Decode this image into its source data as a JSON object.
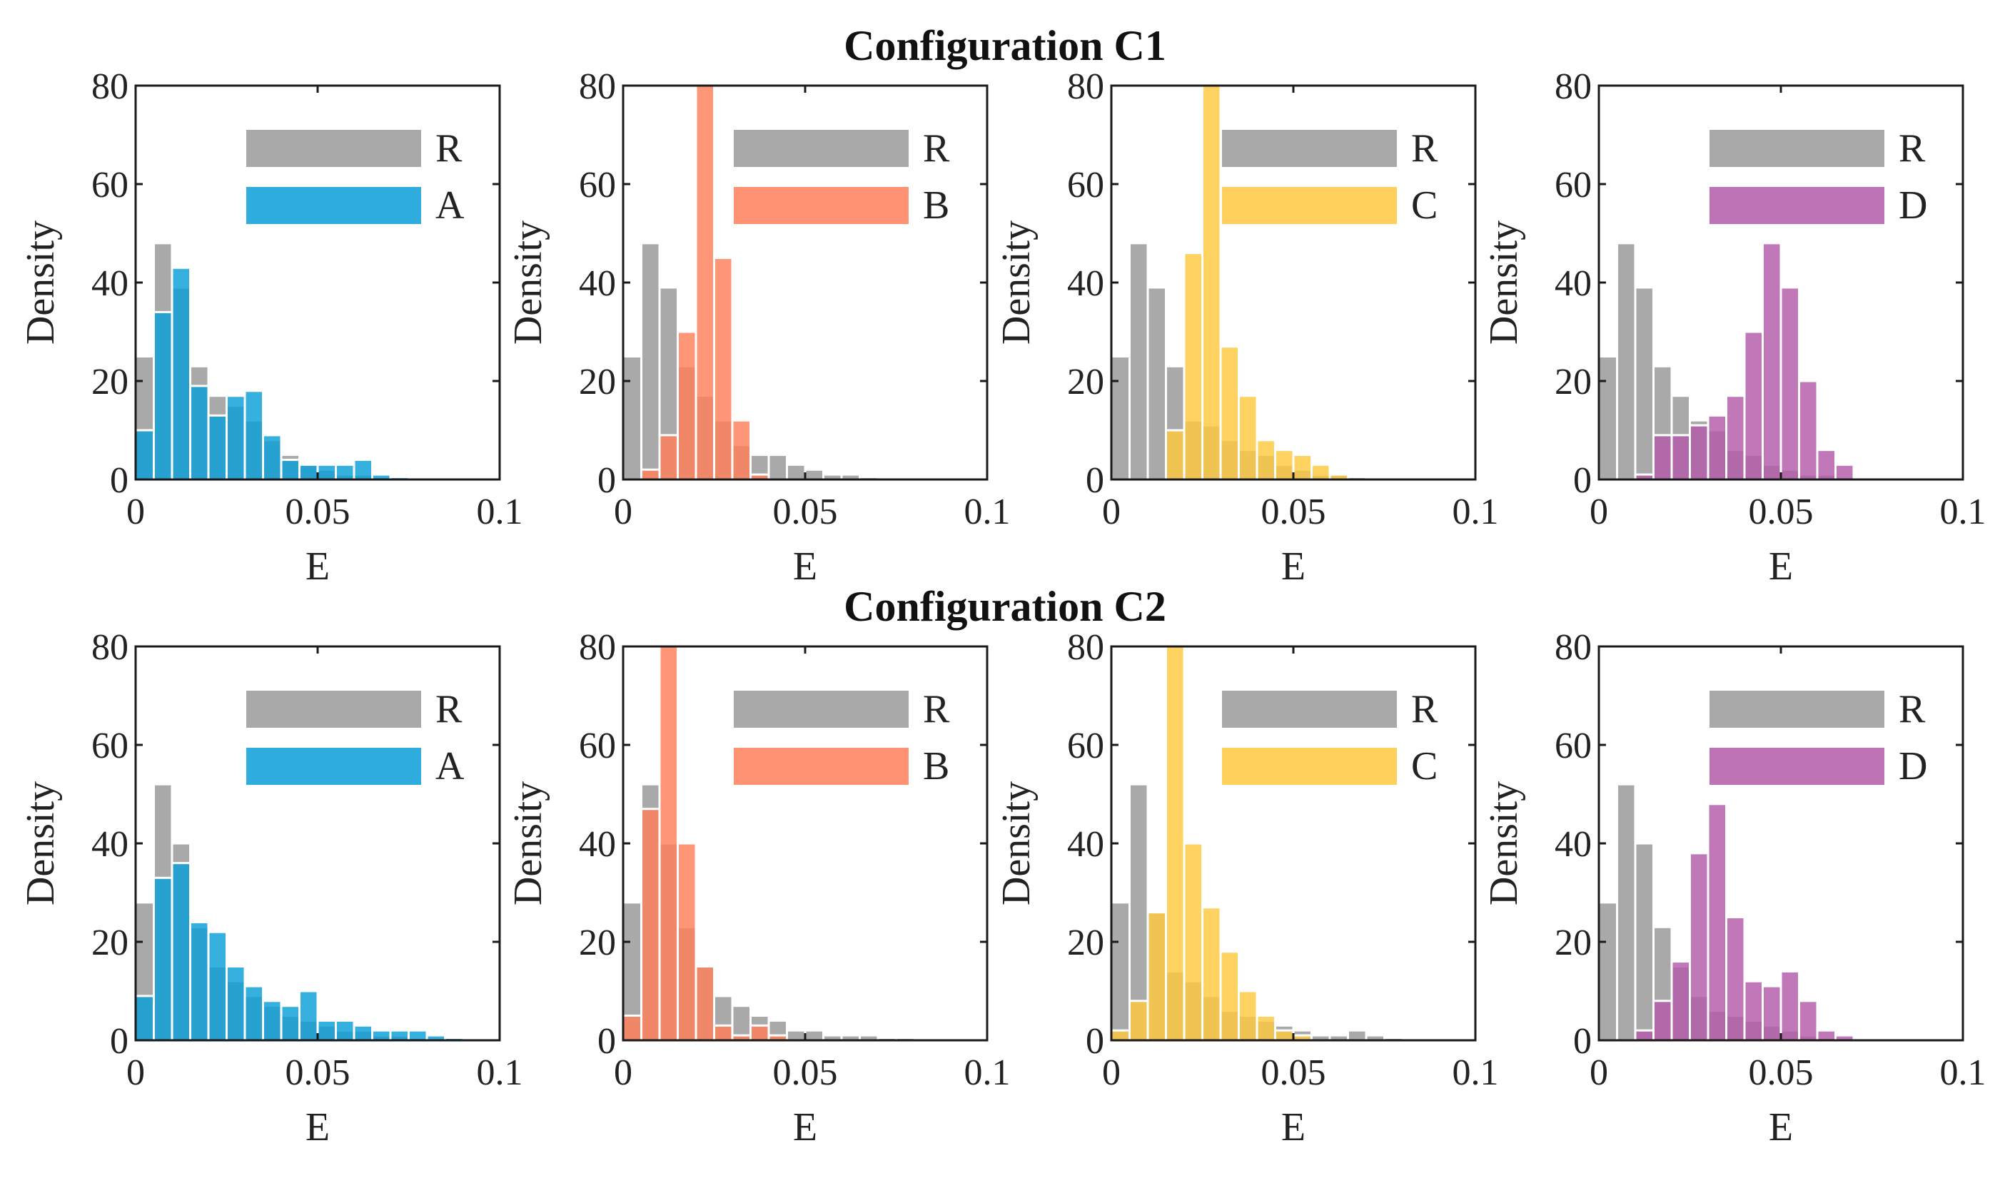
{
  "figure": {
    "row_titles": [
      "Configuration C1",
      "Configuration C2"
    ]
  },
  "colors": {
    "R": "#8c8c8c",
    "A": "#0a9fd8",
    "B": "#ff7f5a",
    "C": "#ffc940",
    "D": "#b35aaa"
  },
  "chart_data": [
    {
      "id": "c1-A",
      "type": "bar",
      "configuration": "C1",
      "xlabel": "E",
      "ylabel": "Density",
      "xlim": [
        0,
        0.1
      ],
      "ylim": [
        0,
        80
      ],
      "xticks": [
        0,
        0.05,
        0.1
      ],
      "xtick_labels": [
        "0",
        "0.05",
        "0.1"
      ],
      "yticks": [
        0,
        20,
        40,
        60,
        80
      ],
      "ytick_labels": [
        "0",
        "20",
        "40",
        "60",
        "80"
      ],
      "bin_width": 0.005,
      "series": [
        {
          "name": "R",
          "color_key": "R",
          "values": [
            25,
            48,
            39,
            23,
            17,
            15,
            12,
            8,
            5,
            3,
            2,
            1,
            1,
            0.5,
            0.3,
            0.2,
            0.1,
            0,
            0,
            0
          ]
        },
        {
          "name": "A",
          "color_key": "A",
          "values": [
            10,
            34,
            43,
            19,
            13,
            17,
            18,
            9,
            4,
            3,
            3,
            3,
            4,
            1,
            0.5,
            0,
            0,
            0,
            0,
            0
          ]
        }
      ],
      "legend": [
        "R",
        "A"
      ],
      "legend_position": "top-right"
    },
    {
      "id": "c1-B",
      "type": "bar",
      "configuration": "C1",
      "xlabel": "E",
      "ylabel": "Density",
      "xlim": [
        0,
        0.1
      ],
      "ylim": [
        0,
        80
      ],
      "xticks": [
        0,
        0.05,
        0.1
      ],
      "xtick_labels": [
        "0",
        "0.05",
        "0.1"
      ],
      "yticks": [
        0,
        20,
        40,
        60,
        80
      ],
      "ytick_labels": [
        "0",
        "20",
        "40",
        "60",
        "80"
      ],
      "bin_width": 0.005,
      "series": [
        {
          "name": "R",
          "color_key": "R",
          "values": [
            25,
            48,
            39,
            23,
            17,
            12,
            7,
            5,
            5,
            3,
            2,
            1,
            1,
            0.5,
            0.3,
            0.2,
            0.1,
            0,
            0,
            0
          ]
        },
        {
          "name": "B",
          "color_key": "B",
          "values": [
            0,
            2,
            9,
            30,
            80,
            45,
            12,
            1,
            0,
            0,
            0,
            0,
            0,
            0,
            0,
            0,
            0,
            0,
            0,
            0
          ]
        }
      ],
      "legend": [
        "R",
        "B"
      ],
      "legend_position": "top-right"
    },
    {
      "id": "c1-C",
      "type": "bar",
      "configuration": "C1",
      "xlabel": "E",
      "ylabel": "Density",
      "xlim": [
        0,
        0.1
      ],
      "ylim": [
        0,
        80
      ],
      "xticks": [
        0,
        0.05,
        0.1
      ],
      "xtick_labels": [
        "0",
        "0.05",
        "0.1"
      ],
      "yticks": [
        0,
        20,
        40,
        60,
        80
      ],
      "ytick_labels": [
        "0",
        "20",
        "40",
        "60",
        "80"
      ],
      "bin_width": 0.005,
      "series": [
        {
          "name": "R",
          "color_key": "R",
          "values": [
            25,
            48,
            39,
            23,
            12,
            11,
            8,
            6,
            5,
            3,
            2,
            1,
            1,
            0.5,
            0.3,
            0.2,
            0.1,
            0,
            0,
            0
          ]
        },
        {
          "name": "C",
          "color_key": "C",
          "values": [
            0,
            0,
            0,
            10,
            46,
            80,
            27,
            17,
            8,
            6,
            5,
            3,
            1,
            0,
            0,
            0,
            0,
            0,
            0,
            0
          ]
        }
      ],
      "legend": [
        "R",
        "C"
      ],
      "legend_position": "top-right"
    },
    {
      "id": "c1-D",
      "type": "bar",
      "configuration": "C1",
      "xlabel": "E",
      "ylabel": "Density",
      "xlim": [
        0,
        0.1
      ],
      "ylim": [
        0,
        80
      ],
      "xticks": [
        0,
        0.05,
        0.1
      ],
      "xtick_labels": [
        "0",
        "0.05",
        "0.1"
      ],
      "yticks": [
        0,
        20,
        40,
        60,
        80
      ],
      "ytick_labels": [
        "0",
        "20",
        "40",
        "60",
        "80"
      ],
      "bin_width": 0.005,
      "series": [
        {
          "name": "R",
          "color_key": "R",
          "values": [
            25,
            48,
            39,
            23,
            17,
            12,
            10,
            6,
            5,
            3,
            2,
            1,
            1,
            0.5,
            0.3,
            0.2,
            0.1,
            0,
            0,
            0
          ]
        },
        {
          "name": "D",
          "color_key": "D",
          "values": [
            0,
            0,
            1,
            9,
            9,
            11,
            13,
            17,
            30,
            48,
            39,
            20,
            6,
            3,
            0,
            0,
            0,
            0,
            0,
            0
          ]
        }
      ],
      "legend": [
        "R",
        "D"
      ],
      "legend_position": "top-right"
    },
    {
      "id": "c2-A",
      "type": "bar",
      "configuration": "C2",
      "xlabel": "E",
      "ylabel": "Density",
      "xlim": [
        0,
        0.1
      ],
      "ylim": [
        0,
        80
      ],
      "xticks": [
        0,
        0.05,
        0.1
      ],
      "xtick_labels": [
        "0",
        "0.05",
        "0.1"
      ],
      "yticks": [
        0,
        20,
        40,
        60,
        80
      ],
      "ytick_labels": [
        "0",
        "20",
        "40",
        "60",
        "80"
      ],
      "bin_width": 0.005,
      "series": [
        {
          "name": "R",
          "color_key": "R",
          "values": [
            28,
            52,
            40,
            23,
            15,
            12,
            9,
            7,
            5,
            4,
            3,
            2,
            2,
            1,
            1,
            0.5,
            0.2,
            0,
            0,
            0
          ]
        },
        {
          "name": "A",
          "color_key": "A",
          "values": [
            9,
            33,
            36,
            24,
            22,
            15,
            11,
            8,
            7,
            10,
            4,
            4,
            3,
            2,
            2,
            2,
            1,
            0.5,
            0,
            0
          ]
        }
      ],
      "legend": [
        "R",
        "A"
      ],
      "legend_position": "top-right"
    },
    {
      "id": "c2-B",
      "type": "bar",
      "configuration": "C2",
      "xlabel": "E",
      "ylabel": "Density",
      "xlim": [
        0,
        0.1
      ],
      "ylim": [
        0,
        80
      ],
      "xticks": [
        0,
        0.05,
        0.1
      ],
      "xtick_labels": [
        "0",
        "0.05",
        "0.1"
      ],
      "yticks": [
        0,
        20,
        40,
        60,
        80
      ],
      "ytick_labels": [
        "0",
        "20",
        "40",
        "60",
        "80"
      ],
      "bin_width": 0.005,
      "series": [
        {
          "name": "R",
          "color_key": "R",
          "values": [
            28,
            52,
            40,
            23,
            15,
            9,
            7,
            5,
            4,
            2,
            2,
            1,
            1,
            1,
            0.5,
            0.5,
            0.2,
            0,
            0,
            0
          ]
        },
        {
          "name": "B",
          "color_key": "B",
          "values": [
            5,
            47,
            80,
            40,
            15,
            3,
            1,
            3,
            1,
            0,
            0,
            0,
            0,
            0,
            0,
            0,
            0,
            0,
            0,
            0
          ]
        }
      ],
      "legend": [
        "R",
        "B"
      ],
      "legend_position": "top-right"
    },
    {
      "id": "c2-C",
      "type": "bar",
      "configuration": "C2",
      "xlabel": "E",
      "ylabel": "Density",
      "xlim": [
        0,
        0.1
      ],
      "ylim": [
        0,
        80
      ],
      "xticks": [
        0,
        0.05,
        0.1
      ],
      "xtick_labels": [
        "0",
        "0.05",
        "0.1"
      ],
      "yticks": [
        0,
        20,
        40,
        60,
        80
      ],
      "ytick_labels": [
        "0",
        "20",
        "40",
        "60",
        "80"
      ],
      "bin_width": 0.005,
      "series": [
        {
          "name": "R",
          "color_key": "R",
          "values": [
            28,
            52,
            26,
            14,
            12,
            9,
            6,
            5,
            4,
            3,
            2,
            1,
            1,
            2,
            1,
            0.5,
            0.2,
            0,
            0,
            0
          ]
        },
        {
          "name": "C",
          "color_key": "C",
          "values": [
            2,
            8,
            26,
            80,
            40,
            27,
            18,
            10,
            5,
            2,
            1,
            0,
            0,
            0,
            0,
            0,
            0,
            0,
            0,
            0
          ]
        }
      ],
      "legend": [
        "R",
        "C"
      ],
      "legend_position": "top-right"
    },
    {
      "id": "c2-D",
      "type": "bar",
      "configuration": "C2",
      "xlabel": "E",
      "ylabel": "Density",
      "xlim": [
        0,
        0.1
      ],
      "ylim": [
        0,
        80
      ],
      "xticks": [
        0,
        0.05,
        0.1
      ],
      "xtick_labels": [
        "0",
        "0.05",
        "0.1"
      ],
      "yticks": [
        0,
        20,
        40,
        60,
        80
      ],
      "ytick_labels": [
        "0",
        "20",
        "40",
        "60",
        "80"
      ],
      "bin_width": 0.005,
      "series": [
        {
          "name": "R",
          "color_key": "R",
          "values": [
            28,
            52,
            40,
            23,
            15,
            9,
            6,
            5,
            4,
            3,
            2,
            1,
            0.5,
            0.3,
            0.2,
            0.1,
            0,
            0,
            0,
            0
          ]
        },
        {
          "name": "D",
          "color_key": "D",
          "values": [
            0,
            0,
            2,
            8,
            16,
            38,
            48,
            25,
            12,
            11,
            14,
            8,
            2,
            1,
            0,
            0,
            0,
            0,
            0,
            0
          ]
        }
      ],
      "legend": [
        "R",
        "D"
      ],
      "legend_position": "top-right"
    }
  ]
}
